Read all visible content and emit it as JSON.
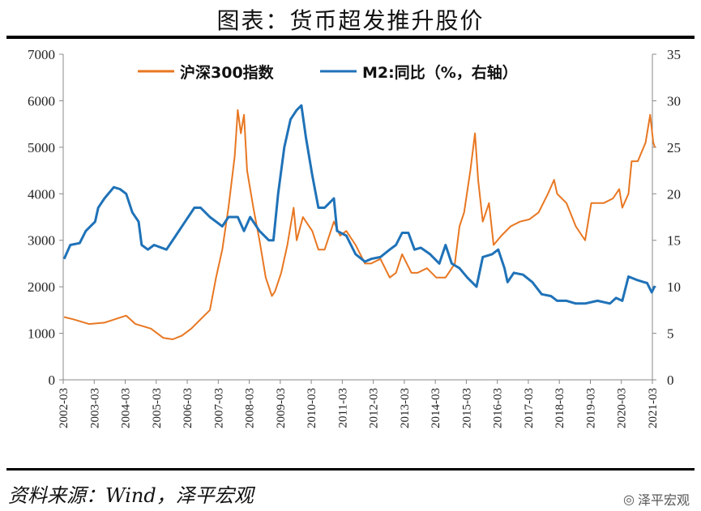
{
  "title": "图表：货币超发推升股价",
  "source": "资料来源：Wind，泽平宏观",
  "brand": "泽平宏观",
  "chart_data": {
    "type": "line",
    "title": "图表：货币超发推升股价",
    "left_axis": {
      "range": [
        0,
        7000
      ],
      "ticks": [
        "0",
        "1000",
        "2000",
        "3000",
        "4000",
        "5000",
        "6000",
        "7000"
      ]
    },
    "right_axis": {
      "range": [
        0,
        35
      ],
      "ticks": [
        "0",
        "5",
        "10",
        "15",
        "20",
        "25",
        "30",
        "35"
      ]
    },
    "x_ticks": [
      "2002-03",
      "2003-03",
      "2004-03",
      "2005-03",
      "2006-03",
      "2007-03",
      "2008-03",
      "2009-03",
      "2010-03",
      "2011-03",
      "2012-03",
      "2013-03",
      "2014-03",
      "2015-03",
      "2016-03",
      "2017-03",
      "2018-03",
      "2019-03",
      "2020-03",
      "2021-03"
    ],
    "legend_position": "top",
    "series": [
      {
        "name": "沪深300指数",
        "axis": "left",
        "color": "#E87722",
        "points": [
          [
            2002.2,
            1350
          ],
          [
            2002.5,
            1300
          ],
          [
            2003.0,
            1200
          ],
          [
            2003.5,
            1230
          ],
          [
            2004.2,
            1380
          ],
          [
            2004.5,
            1200
          ],
          [
            2005.0,
            1100
          ],
          [
            2005.4,
            900
          ],
          [
            2005.7,
            870
          ],
          [
            2006.0,
            950
          ],
          [
            2006.3,
            1100
          ],
          [
            2006.6,
            1300
          ],
          [
            2006.9,
            1500
          ],
          [
            2007.1,
            2200
          ],
          [
            2007.3,
            2800
          ],
          [
            2007.5,
            3700
          ],
          [
            2007.7,
            4800
          ],
          [
            2007.8,
            5800
          ],
          [
            2007.9,
            5300
          ],
          [
            2008.0,
            5700
          ],
          [
            2008.1,
            4500
          ],
          [
            2008.3,
            3700
          ],
          [
            2008.5,
            3000
          ],
          [
            2008.7,
            2200
          ],
          [
            2008.9,
            1800
          ],
          [
            2009.0,
            1900
          ],
          [
            2009.2,
            2300
          ],
          [
            2009.4,
            2900
          ],
          [
            2009.6,
            3700
          ],
          [
            2009.7,
            3000
          ],
          [
            2009.9,
            3500
          ],
          [
            2010.2,
            3200
          ],
          [
            2010.4,
            2800
          ],
          [
            2010.6,
            2800
          ],
          [
            2010.9,
            3400
          ],
          [
            2011.1,
            3100
          ],
          [
            2011.3,
            3200
          ],
          [
            2011.6,
            2900
          ],
          [
            2011.9,
            2500
          ],
          [
            2012.1,
            2500
          ],
          [
            2012.4,
            2600
          ],
          [
            2012.7,
            2200
          ],
          [
            2012.9,
            2300
          ],
          [
            2013.1,
            2700
          ],
          [
            2013.4,
            2300
          ],
          [
            2013.6,
            2300
          ],
          [
            2013.9,
            2400
          ],
          [
            2014.2,
            2200
          ],
          [
            2014.5,
            2200
          ],
          [
            2014.8,
            2500
          ],
          [
            2014.95,
            3300
          ],
          [
            2015.1,
            3600
          ],
          [
            2015.3,
            4500
          ],
          [
            2015.45,
            5300
          ],
          [
            2015.55,
            4300
          ],
          [
            2015.7,
            3400
          ],
          [
            2015.9,
            3800
          ],
          [
            2016.05,
            2900
          ],
          [
            2016.3,
            3100
          ],
          [
            2016.6,
            3300
          ],
          [
            2016.9,
            3400
          ],
          [
            2017.2,
            3450
          ],
          [
            2017.5,
            3600
          ],
          [
            2017.8,
            4000
          ],
          [
            2018.0,
            4300
          ],
          [
            2018.1,
            4000
          ],
          [
            2018.4,
            3800
          ],
          [
            2018.7,
            3300
          ],
          [
            2018.9,
            3100
          ],
          [
            2019.0,
            3000
          ],
          [
            2019.2,
            3800
          ],
          [
            2019.4,
            3800
          ],
          [
            2019.6,
            3800
          ],
          [
            2019.9,
            3900
          ],
          [
            2020.1,
            4100
          ],
          [
            2020.2,
            3700
          ],
          [
            2020.4,
            4000
          ],
          [
            2020.5,
            4700
          ],
          [
            2020.7,
            4700
          ],
          [
            2020.95,
            5100
          ],
          [
            2021.1,
            5700
          ],
          [
            2021.2,
            5100
          ],
          [
            2021.25,
            5000
          ]
        ]
      },
      {
        "name": "M2:同比（%，右轴）",
        "axis": "right",
        "color": "#1F72B8",
        "points": [
          [
            2002.2,
            13
          ],
          [
            2002.4,
            14.5
          ],
          [
            2002.7,
            14.7
          ],
          [
            2002.9,
            16
          ],
          [
            2003.2,
            17
          ],
          [
            2003.3,
            18.5
          ],
          [
            2003.5,
            19.5
          ],
          [
            2003.8,
            20.7
          ],
          [
            2004.0,
            20.5
          ],
          [
            2004.2,
            20
          ],
          [
            2004.4,
            18
          ],
          [
            2004.6,
            17
          ],
          [
            2004.7,
            14.5
          ],
          [
            2004.9,
            14
          ],
          [
            2005.1,
            14.5
          ],
          [
            2005.5,
            14
          ],
          [
            2005.8,
            15.5
          ],
          [
            2006.1,
            17
          ],
          [
            2006.4,
            18.5
          ],
          [
            2006.6,
            18.5
          ],
          [
            2006.9,
            17.5
          ],
          [
            2007.1,
            17
          ],
          [
            2007.3,
            16.5
          ],
          [
            2007.5,
            17.5
          ],
          [
            2007.8,
            17.5
          ],
          [
            2008.0,
            16
          ],
          [
            2008.2,
            17.5
          ],
          [
            2008.5,
            16
          ],
          [
            2008.8,
            15
          ],
          [
            2008.95,
            15
          ],
          [
            2009.1,
            20
          ],
          [
            2009.3,
            25
          ],
          [
            2009.5,
            28
          ],
          [
            2009.7,
            29
          ],
          [
            2009.85,
            29.5
          ],
          [
            2010.0,
            26
          ],
          [
            2010.2,
            22
          ],
          [
            2010.4,
            18.5
          ],
          [
            2010.6,
            18.5
          ],
          [
            2010.9,
            19.5
          ],
          [
            2011.0,
            16
          ],
          [
            2011.3,
            15.5
          ],
          [
            2011.6,
            13.5
          ],
          [
            2011.9,
            12.7
          ],
          [
            2012.1,
            13
          ],
          [
            2012.4,
            13.2
          ],
          [
            2012.7,
            14
          ],
          [
            2012.9,
            14.5
          ],
          [
            2013.1,
            15.8
          ],
          [
            2013.3,
            15.8
          ],
          [
            2013.5,
            14
          ],
          [
            2013.7,
            14.2
          ],
          [
            2014.0,
            13.5
          ],
          [
            2014.3,
            12.5
          ],
          [
            2014.5,
            14.5
          ],
          [
            2014.7,
            12.5
          ],
          [
            2014.95,
            12
          ],
          [
            2015.2,
            11
          ],
          [
            2015.5,
            10
          ],
          [
            2015.7,
            13.2
          ],
          [
            2016.0,
            13.5
          ],
          [
            2016.2,
            14
          ],
          [
            2016.4,
            12
          ],
          [
            2016.5,
            10.5
          ],
          [
            2016.7,
            11.5
          ],
          [
            2017.0,
            11.3
          ],
          [
            2017.3,
            10.5
          ],
          [
            2017.6,
            9.2
          ],
          [
            2017.9,
            9
          ],
          [
            2018.1,
            8.5
          ],
          [
            2018.4,
            8.5
          ],
          [
            2018.7,
            8.2
          ],
          [
            2019.0,
            8.2
          ],
          [
            2019.4,
            8.5
          ],
          [
            2019.8,
            8.2
          ],
          [
            2020.0,
            8.8
          ],
          [
            2020.2,
            8.5
          ],
          [
            2020.4,
            11.1
          ],
          [
            2020.7,
            10.7
          ],
          [
            2020.9,
            10.5
          ],
          [
            2021.0,
            10.4
          ],
          [
            2021.15,
            9.4
          ],
          [
            2021.25,
            10.1
          ]
        ]
      }
    ]
  }
}
